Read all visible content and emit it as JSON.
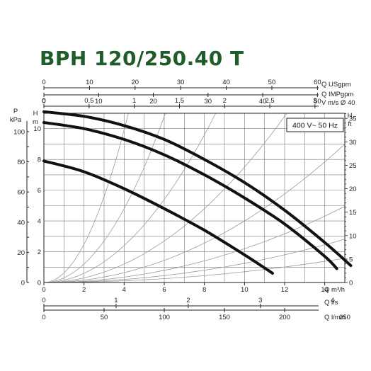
{
  "title": "BPH 120/250.40 T",
  "colors": {
    "title": "#1f5c2a",
    "curve": "#111111",
    "grid": "#7a7a7a",
    "system": "#9a9a9a"
  },
  "chart_data": {
    "type": "line",
    "legend": "400 V~ 50 Hz",
    "legend_placement": "top-right",
    "grid": true,
    "x_axis": {
      "label": "Q m³/h",
      "range": [
        0,
        15
      ],
      "ticks": [
        0,
        2,
        4,
        6,
        8,
        10,
        12,
        14
      ]
    },
    "y_axis_left_head": {
      "label_top": "H",
      "label_bottom": "m",
      "range": [
        0,
        11
      ],
      "ticks": [
        0,
        2,
        4,
        6,
        8,
        10
      ]
    },
    "y_axis_left_pressure": {
      "label_top": "P",
      "label_bottom": "kPa",
      "range": [
        0,
        110
      ],
      "ticks": [
        0,
        20,
        40,
        60,
        80,
        100
      ]
    },
    "y_axis_right_head": {
      "label_top": "H",
      "label_bottom": "ft",
      "range": [
        0,
        36
      ],
      "ticks": [
        0,
        5,
        10,
        15,
        20,
        25,
        30,
        35
      ]
    },
    "top_axes": [
      {
        "label": "Q USgpm",
        "max": 66,
        "ticks": [
          0,
          10,
          20,
          30,
          40,
          50,
          60
        ]
      },
      {
        "label": "Q IMPgpm",
        "max": 55,
        "ticks": [
          0,
          10,
          20,
          30,
          40,
          50
        ]
      },
      {
        "label": "V m/s Ø 40",
        "max": 3.33,
        "ticks": [
          "0",
          "0,5",
          "1",
          "1,5",
          "2",
          "2,5",
          "3"
        ]
      }
    ],
    "bottom_axes": [
      {
        "label": "Q l/s",
        "max": 4.17,
        "ticks": [
          0,
          1,
          2,
          3,
          4
        ]
      },
      {
        "label": "Q l/min",
        "max": 250,
        "ticks": [
          0,
          50,
          100,
          150,
          200,
          250
        ]
      }
    ],
    "series": [
      {
        "x": [
          0,
          2,
          4,
          6,
          8,
          10,
          12,
          14,
          15.3
        ],
        "y": [
          11.1,
          10.8,
          10.2,
          9.3,
          8.0,
          6.5,
          4.7,
          2.6,
          1.1
        ]
      },
      {
        "x": [
          0,
          2,
          4,
          6,
          8,
          10,
          12,
          14,
          14.6
        ],
        "y": [
          10.4,
          10.0,
          9.3,
          8.3,
          7.0,
          5.5,
          3.8,
          1.7,
          0.9
        ]
      },
      {
        "x": [
          0,
          2,
          4,
          6,
          8,
          10,
          11.4
        ],
        "y": [
          7.9,
          7.2,
          6.1,
          4.8,
          3.4,
          1.8,
          0.6
        ]
      }
    ],
    "system_curve_coeffs": [
      0.62,
      0.3,
      0.15,
      0.075,
      0.04,
      0.022,
      0.0125,
      0.007
    ]
  }
}
